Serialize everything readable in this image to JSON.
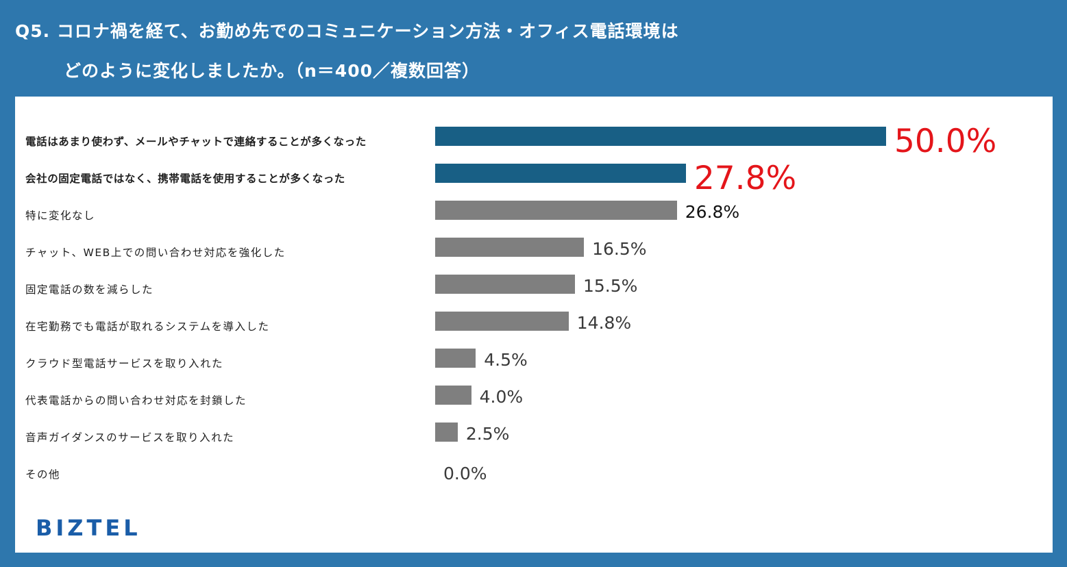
{
  "title": {
    "line1": "Q5. コロナ禍を経て、お勤め先でのコミュニケーション方法・オフィス電話環境は",
    "line2": "どのように変化しましたか。（n＝400／複数回答）"
  },
  "brand": "BIZTEL",
  "colors": {
    "background": "#2e77ad",
    "highlight_bar": "#185f85",
    "bar": "#7f7f7f",
    "highlight_value": "#e4151a",
    "brand": "#1a5da8"
  },
  "chart_data": {
    "type": "bar",
    "orientation": "horizontal",
    "categories": [
      "電話はあまり使わず、メールやチャットで連絡することが多くなった",
      "会社の固定電話ではなく、携帯電話を使用することが多くなった",
      "特に変化なし",
      "チャット、WEB上での問い合わせ対応を強化した",
      "固定電話の数を減らした",
      "在宅勤務でも電話が取れるシステムを導入した",
      "クラウド型電話サービスを取り入れた",
      "代表電話からの問い合わせ対応を封鎖した",
      "音声ガイダンスのサービスを取り入れた",
      "その他"
    ],
    "values": [
      50.0,
      27.8,
      26.8,
      16.5,
      15.5,
      14.8,
      4.5,
      4.0,
      2.5,
      0.0
    ],
    "value_labels": [
      "50.0%",
      "27.8%",
      "26.8%",
      "16.5%",
      "15.5%",
      "14.8%",
      "4.5%",
      "4.0%",
      "2.5%",
      "0.0%"
    ],
    "highlighted": [
      true,
      true,
      false,
      false,
      false,
      false,
      false,
      false,
      false,
      false
    ],
    "xlim": [
      0,
      50
    ],
    "grid": false,
    "legend": "none"
  }
}
